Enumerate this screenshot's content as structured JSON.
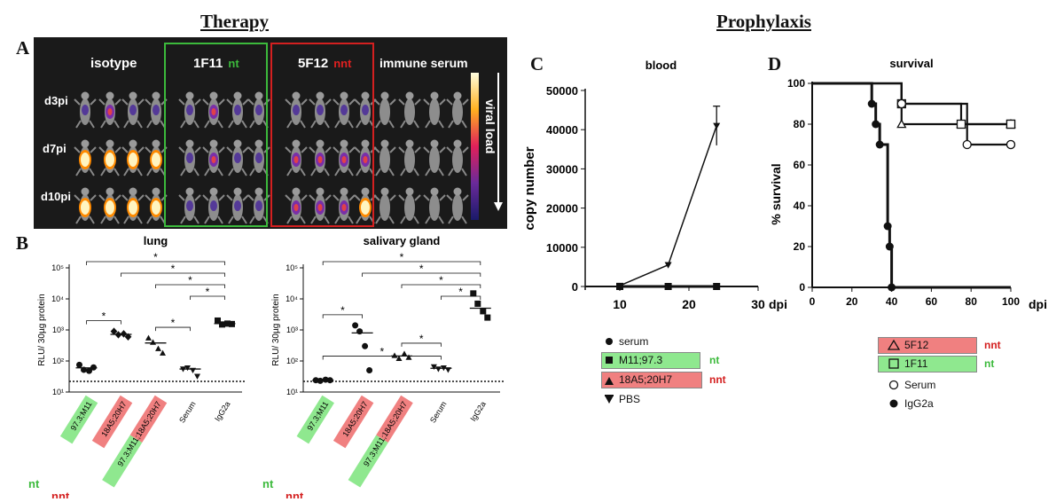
{
  "headers": {
    "therapy": "Therapy",
    "prophylaxis": "Prophylaxis"
  },
  "panel_letters": {
    "a": "A",
    "b": "B",
    "c": "C",
    "d": "D"
  },
  "colors": {
    "nt_green": "#3cba3c",
    "nnt_red": "#d42020",
    "nt_bg": "#8fe88f",
    "nnt_bg": "#f08080",
    "image_bg": "#1a1a1a"
  },
  "panel_a": {
    "columns": [
      {
        "label": "isotype",
        "tag": ""
      },
      {
        "label": "1F11",
        "tag": "nt"
      },
      {
        "label": "5F12",
        "tag": "nnt"
      },
      {
        "label": "immune serum",
        "tag": ""
      }
    ],
    "rows": [
      "d3pi",
      "d7pi",
      "d10pi"
    ],
    "scale_label": "viral load"
  },
  "chart_data": [
    {
      "type": "scatter",
      "panel": "B",
      "title": "lung",
      "ylabel": "RLU/ 30µg protein",
      "yscale": "log",
      "ylim": [
        10,
        100000
      ],
      "yticks": [
        "10¹",
        "10²",
        "10³",
        "10⁴",
        "10⁵"
      ],
      "dotted_line": 22,
      "categories": [
        "97.3;M11",
        "18A5;20H7",
        "97.3;M11;18A5;20H7",
        "Serum",
        "IgG2a"
      ],
      "series": [
        {
          "marker": "circle",
          "values": [
            75,
            52,
            48,
            62
          ],
          "median": 60
        },
        {
          "marker": "diamond",
          "values": [
            900,
            700,
            750,
            600
          ],
          "median": 720
        },
        {
          "marker": "triangle",
          "values": [
            550,
            400,
            250,
            180
          ],
          "median": 380
        },
        {
          "marker": "triangle-down",
          "values": [
            55,
            60,
            50,
            32
          ],
          "median": 55
        },
        {
          "marker": "square",
          "values": [
            2000,
            1500,
            1600,
            1550
          ],
          "median": 1600
        }
      ],
      "significance": [
        {
          "from": 0,
          "to": 4,
          "label": "*"
        },
        {
          "from": 1,
          "to": 4,
          "label": "*"
        },
        {
          "from": 2,
          "to": 4,
          "label": "*"
        },
        {
          "from": 3,
          "to": 4,
          "label": "*"
        },
        {
          "from": 0,
          "to": 1,
          "label": "*"
        },
        {
          "from": 2,
          "to": 3,
          "label": "*"
        }
      ]
    },
    {
      "type": "scatter",
      "panel": "B",
      "title": "salivary gland",
      "ylabel": "RLU/ 30µg protein",
      "yscale": "log",
      "ylim": [
        10,
        100000
      ],
      "yticks": [
        "10¹",
        "10²",
        "10³",
        "10⁴",
        "10⁵"
      ],
      "dotted_line": 22,
      "categories": [
        "97.3;M11",
        "18A5;20H7",
        "97.3;M11;18A5;20H7",
        "Serum",
        "IgG2a"
      ],
      "series": [
        {
          "marker": "circle",
          "values": [
            24,
            23,
            25,
            24
          ],
          "median": 24
        },
        {
          "marker": "circle",
          "values": [
            1400,
            900,
            300,
            50
          ],
          "median": 800
        },
        {
          "marker": "triangle",
          "values": [
            150,
            120,
            170,
            130
          ],
          "median": 145
        },
        {
          "marker": "triangle-down",
          "values": [
            65,
            55,
            60,
            52
          ],
          "median": 58
        },
        {
          "marker": "square",
          "values": [
            15000,
            7000,
            4000,
            2500
          ],
          "median": 5000
        }
      ],
      "significance": [
        {
          "from": 0,
          "to": 4,
          "label": "*"
        },
        {
          "from": 1,
          "to": 4,
          "label": "*"
        },
        {
          "from": 2,
          "to": 4,
          "label": "*"
        },
        {
          "from": 3,
          "to": 4,
          "label": "*"
        },
        {
          "from": 0,
          "to": 3,
          "label": "*"
        },
        {
          "from": 0,
          "to": 1,
          "label": "*"
        },
        {
          "from": 2,
          "to": 3,
          "label": "*"
        }
      ]
    },
    {
      "type": "line",
      "panel": "C",
      "title": "blood",
      "ylabel": "copy number",
      "xlabel": "dpi",
      "xlim": [
        5,
        30
      ],
      "ylim": [
        0,
        50000
      ],
      "xticks": [
        10,
        20,
        30
      ],
      "yticks": [
        0,
        10000,
        20000,
        30000,
        40000,
        50000
      ],
      "series": [
        {
          "name": "serum",
          "marker": "circle",
          "x": [
            10,
            17,
            24
          ],
          "y": [
            0,
            0,
            0
          ]
        },
        {
          "name": "M11;97.3",
          "tag": "nt",
          "marker": "square",
          "x": [
            10,
            17,
            24
          ],
          "y": [
            0,
            0,
            0
          ]
        },
        {
          "name": "18A5;20H7",
          "tag": "nnt",
          "marker": "triangle",
          "x": [
            10,
            17,
            24
          ],
          "y": [
            0,
            0,
            0
          ]
        },
        {
          "name": "PBS",
          "marker": "triangle-down",
          "x": [
            10,
            17,
            24
          ],
          "y": [
            200,
            5500,
            41000
          ],
          "err": [
            0,
            0,
            5000
          ]
        }
      ]
    },
    {
      "type": "line",
      "panel": "D",
      "title": "survival",
      "ylabel": "% survival",
      "xlabel": "dpi",
      "xlim": [
        0,
        100
      ],
      "ylim": [
        0,
        100
      ],
      "xticks": [
        0,
        20,
        40,
        60,
        80,
        100
      ],
      "yticks": [
        0,
        20,
        40,
        60,
        80,
        100
      ],
      "series": [
        {
          "name": "5F12",
          "tag": "nnt",
          "marker": "triangle-open",
          "x": [
            0,
            45,
            75,
            100
          ],
          "y": [
            100,
            80,
            80,
            80
          ]
        },
        {
          "name": "1F11",
          "tag": "nt",
          "marker": "square-open",
          "x": [
            0,
            45,
            75,
            100
          ],
          "y": [
            100,
            90,
            80,
            80
          ]
        },
        {
          "name": "Serum",
          "marker": "circle-open",
          "x": [
            0,
            45,
            78,
            100
          ],
          "y": [
            100,
            90,
            70,
            70
          ]
        },
        {
          "name": "IgG2a",
          "marker": "circle",
          "x": [
            0,
            30,
            32,
            34,
            38,
            39,
            40,
            100
          ],
          "y": [
            100,
            90,
            80,
            70,
            30,
            20,
            0,
            0
          ]
        }
      ]
    }
  ],
  "panel_b_tags": {
    "nt": "nt",
    "nnt": "nnt"
  }
}
